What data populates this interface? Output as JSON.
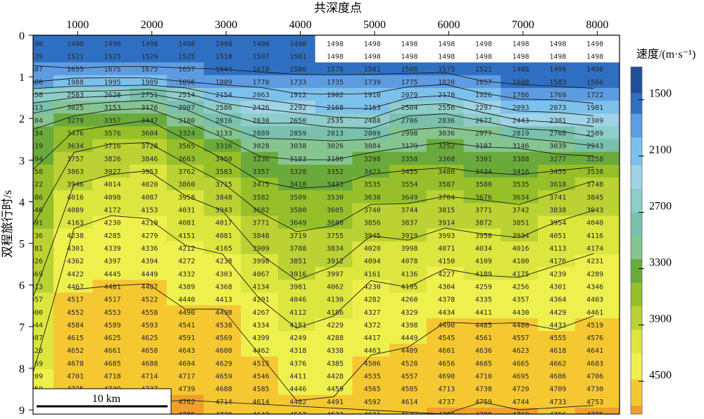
{
  "chart_data": {
    "type": "heatmap",
    "title": "",
    "xlabel": "共深度点",
    "ylabel": "双程旅行时/s",
    "x_ticks": [
      1000,
      2000,
      3000,
      4000,
      5000,
      6000,
      7000,
      8000
    ],
    "y_ticks": [
      0,
      1,
      2,
      3,
      4,
      5,
      6,
      7,
      8,
      9
    ],
    "xlim": [
      400,
      8300
    ],
    "ylim": [
      0,
      9.1
    ],
    "grid": false,
    "colorbar": {
      "title": "速度/(m·s⁻¹)",
      "tick_labels": [
        "1500",
        "2100",
        "2700",
        "3300",
        "3900",
        "4500"
      ],
      "ticks": [
        1500,
        2100,
        2700,
        3300,
        3900,
        4500
      ],
      "range": [
        1150,
        4850
      ],
      "bands": [
        {
          "v": 1150,
          "color": "#1f4f98"
        },
        {
          "v": 1430,
          "color": "#2f6fc1"
        },
        {
          "v": 1650,
          "color": "#5e9ce1"
        },
        {
          "v": 1900,
          "color": "#7cc1ec"
        },
        {
          "v": 2200,
          "color": "#9fd3e5"
        },
        {
          "v": 2450,
          "color": "#8ecdc9"
        },
        {
          "v": 2700,
          "color": "#79c1ad"
        },
        {
          "v": 2950,
          "color": "#86c490"
        },
        {
          "v": 3200,
          "color": "#6aaa3a"
        },
        {
          "v": 3450,
          "color": "#96bf2a"
        },
        {
          "v": 3700,
          "color": "#bad233"
        },
        {
          "v": 3950,
          "color": "#dce63f"
        },
        {
          "v": 4200,
          "color": "#eef04e"
        },
        {
          "v": 4480,
          "color": "#f5c832"
        },
        {
          "v": 4760,
          "color": "#f0a02a"
        }
      ]
    },
    "scale_bar": {
      "label": "10 km",
      "length_cdp": 1800
    },
    "sample_cdps": [
      400,
      950,
      1450,
      1950,
      2450,
      2950,
      3450,
      3950,
      4450,
      4950,
      5450,
      5950,
      6450,
      6950,
      7450,
      7950
    ],
    "rows": [
      {
        "t": 0.1,
        "v": [
          1498,
          1498,
          1498,
          1498,
          1498,
          1498,
          1498,
          1498,
          1498,
          1498,
          1498,
          1498,
          1498,
          1498,
          1498,
          1498
        ]
      },
      {
        "t": 0.26,
        "v": [
          1539,
          1521,
          1525,
          1529,
          1525,
          1518,
          1507,
          1501,
          1498,
          1498,
          1498,
          1498,
          1498,
          1498,
          1498,
          1498
        ]
      },
      {
        "t": 0.42,
        "v": [
          1687,
          1655,
          1675,
          1675,
          1657,
          1644,
          1610,
          1586,
          1575,
          1581,
          1580,
          1575,
          1521,
          1488,
          1499,
          1498
        ]
      },
      {
        "t": 0.58,
        "v": [
          1880,
          1988,
          1995,
          1989,
          1896,
          1809,
          1770,
          1733,
          1735,
          1739,
          1775,
          1820,
          1657,
          1608,
          1583,
          1566
        ]
      },
      {
        "t": 0.74,
        "v": [
          2458,
          2583,
          2628,
          2751,
          2514,
          2154,
          2063,
          1912,
          1902,
          1910,
          2079,
          2170,
          1926,
          1786,
          1769,
          1722
        ]
      },
      {
        "t": 0.9,
        "v": [
          2813,
          3025,
          3153,
          3176,
          2907,
          2586,
          2426,
          2292,
          2168,
          2163,
          2504,
          2556,
          2297,
          2093,
          2073,
          1981
        ]
      },
      {
        "t": 1.06,
        "v": [
          3104,
          3279,
          3357,
          3447,
          3180,
          2816,
          2630,
          2650,
          2535,
          2488,
          2786,
          2836,
          2677,
          2443,
          2381,
          2309
        ]
      },
      {
        "t": 1.22,
        "v": [
          3234,
          3476,
          3576,
          3604,
          3324,
          3133,
          2889,
          2859,
          2813,
          2809,
          2998,
          3036,
          2977,
          2819,
          2768,
          2589
        ]
      },
      {
        "t": 1.38,
        "v": [
          3319,
          3634,
          3716,
          3728,
          3565,
          3316,
          3028,
          3038,
          3026,
          3084,
          3179,
          3252,
          3187,
          3146,
          3039,
          2943
        ]
      },
      {
        "t": 1.54,
        "v": [
          3394,
          3757,
          3826,
          3846,
          3663,
          3450,
          3236,
          3183,
          3180,
          3298,
          3358,
          3368,
          3301,
          3388,
          3277,
          3258
        ]
      },
      {
        "t": 1.7,
        "v": [
          3458,
          3863,
          3927,
          3953,
          3762,
          3583,
          3357,
          3328,
          3352,
          3423,
          3455,
          3480,
          3434,
          3416,
          3455,
          3538
        ]
      },
      {
        "t": 1.86,
        "v": [
          3522,
          3946,
          4014,
          4020,
          3860,
          3715,
          3475,
          3418,
          3433,
          3535,
          3554,
          3587,
          3580,
          3535,
          3618,
          3748
        ]
      },
      {
        "t": 2.02,
        "v": [
          3586,
          4016,
          4098,
          4087,
          3958,
          3848,
          3582,
          3509,
          3530,
          3638,
          3649,
          3704,
          3676,
          3634,
          3741,
          3845
        ]
      },
      {
        "t": 2.18,
        "v": [
          3646,
          4089,
          4172,
          4153,
          4031,
          3943,
          3682,
          3580,
          3605,
          3740,
          3744,
          3815,
          3771,
          3742,
          3838,
          3943
        ]
      },
      {
        "t": 2.34,
        "v": [
          3691,
          4163,
          4230,
          4219,
          4081,
          4017,
          3771,
          3649,
          3680,
          3856,
          3837,
          3914,
          3872,
          3851,
          3954,
          4040
        ]
      },
      {
        "t": 2.5,
        "v": [
          3736,
          4238,
          4285,
          4279,
          4151,
          4081,
          3848,
          3719,
          3755,
          3945,
          3919,
          3993,
          3958,
          3934,
          4051,
          4116
        ]
      },
      {
        "t": 2.66,
        "v": [
          3781,
          4301,
          4339,
          4336,
          4212,
          4165,
          3909,
          3788,
          3834,
          4020,
          3998,
          4071,
          4034,
          4016,
          4113,
          4174
        ]
      },
      {
        "t": 2.82,
        "v": [
          3826,
          4362,
          4397,
          4394,
          4272,
          4238,
          3998,
          3851,
          3912,
          4094,
          4078,
          4150,
          4109,
          4100,
          4176,
          4231
        ]
      },
      {
        "t": 2.98,
        "v": [
          3869,
          4422,
          4445,
          4449,
          4332,
          4303,
          4067,
          3916,
          3997,
          4161,
          4136,
          4227,
          4189,
          4175,
          4239,
          4289
        ]
      },
      {
        "t": 3.14,
        "v": [
          3913,
          4467,
          4481,
          4487,
          4389,
          4368,
          4134,
          3981,
          4062,
          4230,
          4195,
          4304,
          4259,
          4256,
          4301,
          4346
        ]
      },
      {
        "t": 3.3,
        "v": [
          3957,
          4517,
          4517,
          4522,
          4440,
          4413,
          4201,
          4046,
          4130,
          4282,
          4260,
          4378,
          4335,
          4357,
          4364,
          4403
        ]
      },
      {
        "t": 3.46,
        "v": [
          4000,
          4552,
          4553,
          4558,
          4490,
          4498,
          4267,
          4112,
          4186,
          4327,
          4329,
          4434,
          4411,
          4430,
          4429,
          4461
        ]
      },
      {
        "t": 3.62,
        "v": [
          4044,
          4584,
          4589,
          4593,
          4541,
          4538,
          4334,
          4181,
          4229,
          4372,
          4398,
          4490,
          4485,
          4488,
          4433,
          4519
        ]
      },
      {
        "t": 3.78,
        "v": [
          4087,
          4615,
          4625,
          4625,
          4591,
          4569,
          4399,
          4249,
          4288,
          4417,
          4449,
          4545,
          4561,
          4557,
          4555,
          4576
        ]
      },
      {
        "t": 3.94,
        "v": [
          4128,
          4652,
          4661,
          4658,
          4643,
          4600,
          4462,
          4318,
          4338,
          4463,
          4489,
          4601,
          4636,
          4623,
          4618,
          4641
        ]
      },
      {
        "t": 4.1,
        "v": [
          4169,
          4678,
          4685,
          4688,
          4694,
          4629,
          4515,
          4376,
          4385,
          4506,
          4528,
          4656,
          4685,
          4665,
          4662,
          4683
        ]
      },
      {
        "t": 4.26,
        "v": [
          4209,
          4701,
          4718,
          4714,
          4717,
          4659,
          4546,
          4411,
          4428,
          4535,
          4557,
          4690,
          4710,
          4695,
          4686,
          4706
        ]
      },
      {
        "t": 4.42,
        "v": [
          4250,
          4725,
          4739,
          4737,
          4739,
          4688,
          4585,
          4446,
          4459,
          4565,
          4585,
          4713,
          4738,
          4720,
          4709,
          4730
        ]
      },
      {
        "t": 4.58,
        "v": [
          4290,
          4749,
          4759,
          4758,
          4762,
          4714,
          4614,
          4482,
          4491,
          4592,
          4614,
          4737,
          4759,
          4744,
          4733,
          4753
        ]
      },
      {
        "t": 4.74,
        "v": [
          4330,
          4771,
          4779,
          4779,
          4785,
          4739,
          4643,
          4517,
          4523,
          4621,
          4642,
          4760,
          4780,
          4768,
          4756,
          4775
        ]
      }
    ],
    "row_time_scale": 1.0
  }
}
